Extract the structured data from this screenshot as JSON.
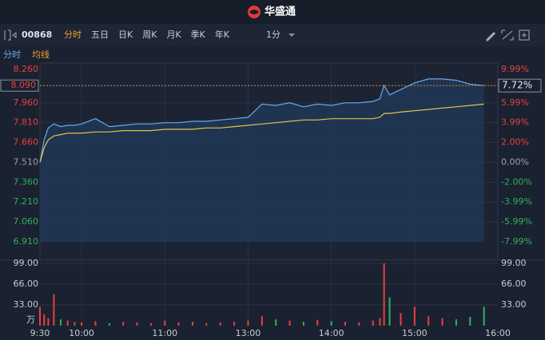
{
  "header": {
    "title": "华盛通"
  },
  "toolbar": {
    "symbol": "00868",
    "tabs": [
      "分时",
      "五日",
      "日K",
      "周K",
      "月K",
      "季K",
      "年K"
    ],
    "active_tab": 0,
    "interval": "1分"
  },
  "chart_data": [
    {
      "type": "line",
      "x": [
        0,
        3,
        6,
        10,
        15,
        20,
        25,
        30,
        40,
        50,
        60,
        70,
        80,
        90,
        100,
        110,
        120,
        130,
        140,
        150,
        160,
        170,
        180,
        190,
        200,
        210,
        220,
        230,
        240,
        245,
        248,
        252,
        260,
        270,
        280,
        290,
        300,
        310,
        320
      ],
      "series": [
        {
          "name": "分时",
          "color": "#6aa9e8",
          "values": [
            7.51,
            7.68,
            7.77,
            7.8,
            7.78,
            7.79,
            7.79,
            7.8,
            7.84,
            7.78,
            7.79,
            7.8,
            7.8,
            7.81,
            7.81,
            7.82,
            7.82,
            7.83,
            7.84,
            7.85,
            7.95,
            7.94,
            7.96,
            7.93,
            7.95,
            7.94,
            7.96,
            7.96,
            7.97,
            7.99,
            8.09,
            8.02,
            8.06,
            8.11,
            8.14,
            8.14,
            8.13,
            8.1,
            8.09
          ]
        },
        {
          "name": "均线",
          "color": "#e8c04a",
          "values": [
            7.51,
            7.62,
            7.68,
            7.71,
            7.72,
            7.73,
            7.73,
            7.73,
            7.74,
            7.74,
            7.75,
            7.75,
            7.75,
            7.76,
            7.76,
            7.76,
            7.77,
            7.77,
            7.78,
            7.79,
            7.8,
            7.81,
            7.82,
            7.83,
            7.83,
            7.84,
            7.84,
            7.84,
            7.84,
            7.85,
            7.88,
            7.88,
            7.89,
            7.9,
            7.91,
            7.92,
            7.93,
            7.94,
            7.95
          ]
        }
      ],
      "xlim": [
        0,
        330
      ],
      "xticks": [
        {
          "value": 0,
          "label": "9:30"
        },
        {
          "value": 30,
          "label": "10:00"
        },
        {
          "value": 90,
          "label": "11:00"
        },
        {
          "value": 150,
          "label": "13:00"
        },
        {
          "value": 210,
          "label": "14:00"
        },
        {
          "value": 270,
          "label": "15:00"
        },
        {
          "value": 330,
          "label": "16:00"
        }
      ],
      "ylim": [
        6.91,
        8.26
      ],
      "yticks": [
        {
          "value": 8.26,
          "label": "8.260"
        },
        {
          "value": 7.96,
          "label": "7.960"
        },
        {
          "value": 7.81,
          "label": "7.810"
        },
        {
          "value": 7.66,
          "label": "7.660"
        },
        {
          "value": 7.51,
          "label": "7.510"
        },
        {
          "value": 7.36,
          "label": "7.360"
        },
        {
          "value": 7.21,
          "label": "7.210"
        },
        {
          "value": 7.06,
          "label": "7.060"
        },
        {
          "value": 6.91,
          "label": "6.910"
        }
      ],
      "y2lim": [
        -7.99,
        9.99
      ],
      "y2ticks": [
        {
          "value": 9.99,
          "label": "9.99%"
        },
        {
          "value": 5.99,
          "label": "5.99%"
        },
        {
          "value": 3.99,
          "label": "3.99%"
        },
        {
          "value": 2.0,
          "label": "2.00%"
        },
        {
          "value": 0,
          "label": "0.00%"
        },
        {
          "value": -2.0,
          "label": "-2.00%"
        },
        {
          "value": -3.99,
          "label": "-3.99%"
        },
        {
          "value": -5.99,
          "label": "-5.99%"
        },
        {
          "value": -7.99,
          "label": "-7.99%"
        }
      ],
      "current": {
        "value": 8.09,
        "label": "8.090",
        "change": 7.72,
        "change_label": "7.72%"
      },
      "up_color": "#e8413f",
      "down_color": "#2fb35a",
      "flat_color": "#9aa3b0"
    },
    {
      "type": "bar",
      "x": [
        0,
        3,
        6,
        10,
        15,
        20,
        25,
        30,
        40,
        50,
        60,
        70,
        80,
        90,
        100,
        110,
        120,
        130,
        140,
        150,
        160,
        170,
        180,
        190,
        200,
        210,
        220,
        230,
        240,
        245,
        248,
        252,
        260,
        270,
        280,
        290,
        300,
        310,
        320
      ],
      "values": [
        30,
        18,
        12,
        50,
        10,
        8,
        6,
        5,
        7,
        4,
        6,
        5,
        4,
        8,
        5,
        6,
        4,
        5,
        6,
        8,
        15,
        10,
        8,
        6,
        9,
        7,
        6,
        5,
        8,
        12,
        99,
        45,
        20,
        30,
        15,
        12,
        10,
        14,
        30
      ],
      "ylim": [
        0,
        99
      ],
      "yticks": [
        {
          "value": 33,
          "label": "33.00"
        },
        {
          "value": 66,
          "label": "66.00"
        },
        {
          "value": 99,
          "label": "99.00"
        }
      ],
      "unit": "万"
    }
  ]
}
